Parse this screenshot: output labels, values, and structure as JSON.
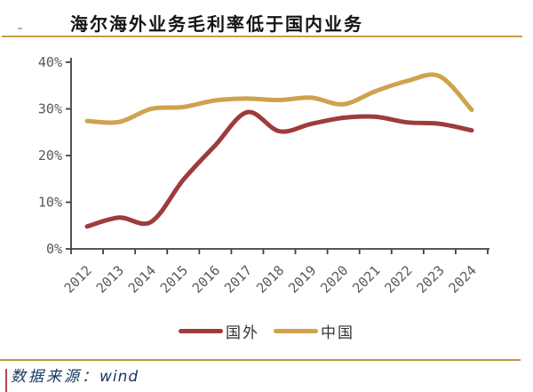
{
  "header": {
    "title": "海尔海外业务毛利率低于国内业务"
  },
  "chart_data": {
    "type": "line",
    "title": "海尔海外业务毛利率低于国内业务",
    "categories": [
      "2012",
      "2013",
      "2014",
      "2015",
      "2016",
      "2017",
      "2018",
      "2019",
      "2020",
      "2021",
      "2022",
      "2023",
      "2024"
    ],
    "series": [
      {
        "name": "国外",
        "color": "#9e3b3b",
        "values": [
          4.8,
          6.7,
          5.8,
          14.8,
          22.2,
          29.3,
          25.2,
          26.8,
          28.1,
          28.3,
          27.1,
          26.8,
          25.4
        ]
      },
      {
        "name": "中国",
        "color": "#cfa24e",
        "values": [
          27.4,
          27.2,
          30.0,
          30.4,
          31.8,
          32.2,
          31.9,
          32.4,
          31.0,
          33.8,
          36.0,
          37.0,
          29.8
        ]
      }
    ],
    "ylim": [
      0,
      40
    ],
    "yticks": [
      {
        "value": 0,
        "label": "0%"
      },
      {
        "value": 10,
        "label": "10%"
      },
      {
        "value": 20,
        "label": "20%"
      },
      {
        "value": 30,
        "label": "30%"
      },
      {
        "value": 40,
        "label": "40%"
      }
    ],
    "xlabel": "",
    "ylabel": "",
    "grid": false,
    "smooth": true,
    "legend_position": "bottom",
    "axis_color": "#404040",
    "tick_label_color": "#595959"
  },
  "footer": {
    "source_label": "数据来源：",
    "source_value": "wind"
  }
}
